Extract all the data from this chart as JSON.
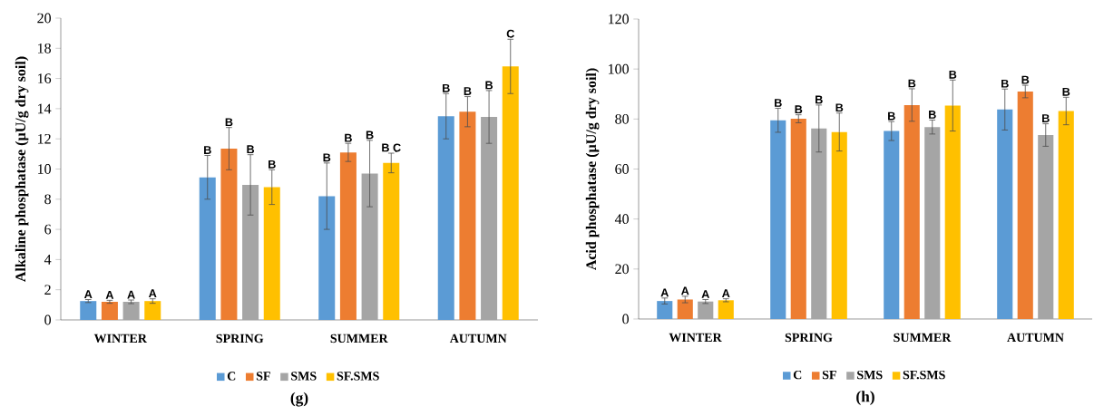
{
  "chart_data": [
    {
      "type": "bar",
      "ylabel": "Alkaline phosphatase (µU/g dry soil)",
      "categories": [
        "WINTER",
        "SPRING",
        "SUMMER",
        "AUTUMN"
      ],
      "ylim": [
        0,
        20
      ],
      "yticks": [
        0,
        2,
        4,
        6,
        8,
        10,
        12,
        14,
        16,
        18,
        20
      ],
      "legend": "bottom",
      "grid": false,
      "annotations": [
        "(g)"
      ],
      "series": [
        {
          "name": "C",
          "color": "#5b9bd5",
          "values": [
            1.25,
            9.45,
            8.2,
            13.5
          ],
          "errors": [
            0.1,
            1.45,
            2.2,
            1.5
          ],
          "value_labels": [
            "A",
            "B",
            "B",
            "B"
          ]
        },
        {
          "name": "SF",
          "color": "#ed7d31",
          "values": [
            1.2,
            11.35,
            11.1,
            13.8
          ],
          "errors": [
            0.1,
            1.4,
            0.6,
            1.0
          ],
          "value_labels": [
            "A",
            "B",
            "B",
            "B"
          ]
        },
        {
          "name": "SMS",
          "color": "#a5a5a5",
          "values": [
            1.2,
            8.95,
            9.7,
            13.45
          ],
          "errors": [
            0.12,
            2.0,
            2.2,
            1.75
          ],
          "value_labels": [
            "A",
            "B",
            "B",
            "B"
          ]
        },
        {
          "name": "SF.SMS",
          "color": "#ffc000",
          "values": [
            1.25,
            8.8,
            10.4,
            16.8
          ],
          "errors": [
            0.15,
            1.15,
            0.65,
            1.8
          ],
          "value_labels": [
            "A",
            "B",
            "B C",
            "C"
          ]
        }
      ]
    },
    {
      "type": "bar",
      "ylabel": "Acid phosphatase (µU/g dry soil)",
      "categories": [
        "WINTER",
        "SPRING",
        "SUMMER",
        "AUTUMN"
      ],
      "ylim": [
        0,
        120
      ],
      "yticks": [
        0,
        20,
        40,
        60,
        80,
        100,
        120
      ],
      "legend": "bottom",
      "grid": false,
      "annotations": [
        "(h)"
      ],
      "series": [
        {
          "name": "C",
          "color": "#5b9bd5",
          "values": [
            7.2,
            79.5,
            75.2,
            83.8
          ],
          "errors": [
            1.2,
            4.8,
            3.8,
            8.2
          ],
          "value_labels": [
            "A",
            "B",
            "B",
            "B"
          ]
        },
        {
          "name": "SF",
          "color": "#ed7d31",
          "values": [
            7.8,
            80.1,
            85.6,
            91.0
          ],
          "errors": [
            1.3,
            1.6,
            6.5,
            2.5
          ],
          "value_labels": [
            "A",
            "B",
            "B",
            "B"
          ]
        },
        {
          "name": "SMS",
          "color": "#a5a5a5",
          "values": [
            7.0,
            76.2,
            76.8,
            73.6
          ],
          "errors": [
            0.8,
            9.4,
            2.8,
            4.5
          ],
          "value_labels": [
            "A",
            "B",
            "B",
            "B"
          ]
        },
        {
          "name": "SF.SMS",
          "color": "#ffc000",
          "values": [
            7.5,
            74.8,
            85.4,
            83.2
          ],
          "errors": [
            0.6,
            7.6,
            10.2,
            5.5
          ],
          "value_labels": [
            "A",
            "B",
            "B",
            "B"
          ]
        }
      ]
    }
  ]
}
